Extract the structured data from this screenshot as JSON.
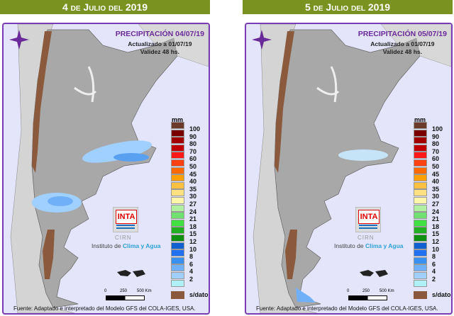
{
  "panels": [
    {
      "header": "4 de Julio del 2019",
      "title": "PRECIPITACIÓN 04/07/19",
      "updated": "Actualizado a 01/07/19",
      "validity": "Validez 48 hs."
    },
    {
      "header": "5 de Julio del 2019",
      "title": "PRECIPITACIÓN 05/07/19",
      "updated": "Actualizado a 01/07/19",
      "validity": "Validez 48 hs."
    }
  ],
  "legend": {
    "unit": "mm",
    "labels": [
      "100",
      "90",
      "80",
      "70",
      "60",
      "50",
      "45",
      "40",
      "35",
      "30",
      "27",
      "24",
      "21",
      "18",
      "15",
      "12",
      "10",
      "8",
      "6",
      "4",
      "2"
    ],
    "colors": [
      "#6b3a2a",
      "#7a0000",
      "#a00000",
      "#c00000",
      "#ff1a1a",
      "#ff4010",
      "#ff6a00",
      "#ffa000",
      "#ffbf40",
      "#ffe080",
      "#fff5a8",
      "#b0f0a0",
      "#70e070",
      "#40e040",
      "#20b020",
      "#109010",
      "#1060d0",
      "#2070f0",
      "#3890f0",
      "#70b0f8",
      "#a0d0ff",
      "#b0f0f8"
    ],
    "nodata": "s/dato"
  },
  "logo": {
    "brand": "INTA",
    "sub": "CIRN",
    "institute_prefix": "Instituto de",
    "institute_name": "Clima y Agua"
  },
  "scale": {
    "labels": [
      "0",
      "250",
      "500 Km"
    ]
  },
  "source": "Fuente: Adaptado e interpretado del Modelo GFS del COLA-IGES, USA."
}
